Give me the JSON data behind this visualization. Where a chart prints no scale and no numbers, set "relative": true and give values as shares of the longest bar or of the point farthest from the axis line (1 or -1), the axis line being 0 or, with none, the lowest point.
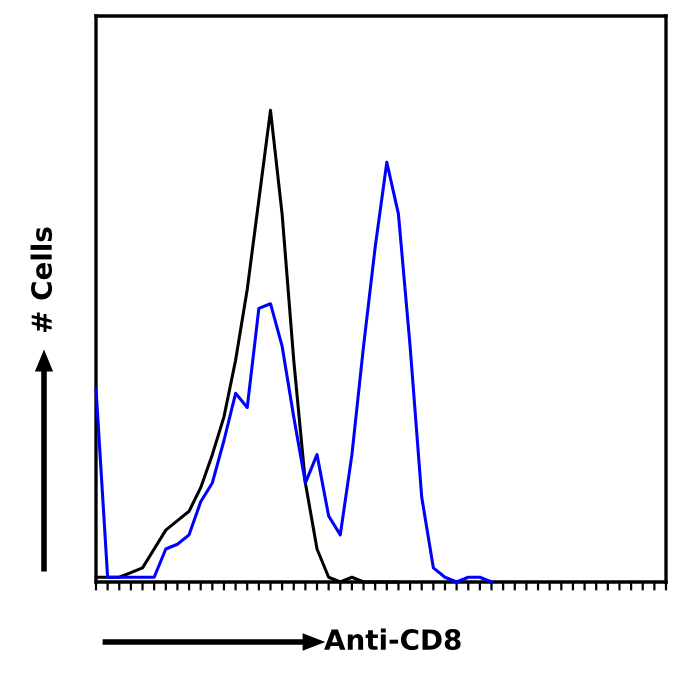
{
  "chart_data": {
    "type": "line",
    "relative": true,
    "xlabel": "Anti-CD8",
    "ylabel": "# Cells",
    "categories": [
      null,
      null,
      null,
      null,
      null,
      null,
      null,
      null,
      null,
      null,
      null,
      null,
      null,
      null,
      null,
      null,
      null,
      null,
      null,
      null,
      null,
      null,
      null,
      null,
      null,
      null,
      null,
      null,
      null,
      null,
      null,
      null,
      null,
      null,
      null,
      null,
      null,
      null,
      null,
      null,
      null,
      null,
      null,
      null,
      null,
      null,
      null,
      null,
      null,
      null
    ],
    "series": [
      {
        "color": "#000000",
        "values": [
          0.01,
          0.01,
          0.01,
          0.02,
          0.03,
          0.07,
          0.11,
          0.13,
          0.15,
          0.2,
          0.27,
          0.35,
          0.47,
          0.62,
          0.81,
          1.0,
          0.78,
          0.47,
          0.21,
          0.07,
          0.01,
          0.0,
          0.01,
          0.0,
          0.0,
          0.0,
          0.0,
          null,
          null,
          null,
          null,
          null,
          null,
          null,
          null,
          null,
          null,
          null,
          null,
          null,
          null,
          null,
          null,
          null,
          null,
          null,
          null,
          null,
          null,
          null
        ]
      },
      {
        "color": "#0000ff",
        "values": [
          0.41,
          0.01,
          0.01,
          0.01,
          0.01,
          0.01,
          0.07,
          0.08,
          0.1,
          0.17,
          0.21,
          0.3,
          0.4,
          0.37,
          0.58,
          0.59,
          0.5,
          0.35,
          0.21,
          0.27,
          0.14,
          0.1,
          0.27,
          0.5,
          0.71,
          0.89,
          0.78,
          0.5,
          0.18,
          0.03,
          0.01,
          0.0,
          0.01,
          0.01,
          0.0,
          null,
          null,
          null,
          null,
          null,
          null,
          null,
          null,
          null,
          null,
          null,
          null,
          null,
          null,
          null
        ]
      }
    ],
    "grid": false,
    "legend": false
  }
}
